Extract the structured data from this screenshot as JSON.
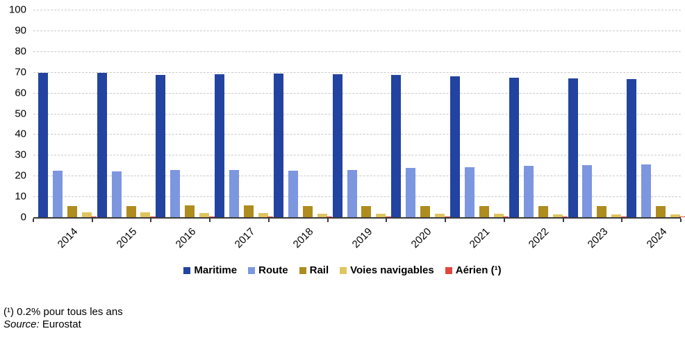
{
  "chart_data": {
    "type": "bar",
    "title": "",
    "categories": [
      "2014",
      "2015",
      "2016",
      "2017",
      "2018",
      "2019",
      "2020",
      "2021",
      "2022",
      "2023",
      "2024"
    ],
    "series": [
      {
        "name": "Maritime",
        "legend_label": "Maritime",
        "color": "#2343a0",
        "values": [
          69.5,
          69.5,
          68.4,
          68.8,
          69.2,
          69.0,
          68.6,
          67.8,
          67.3,
          67.0,
          66.6
        ]
      },
      {
        "name": "Route",
        "legend_label": "Route",
        "color": "#7d96e0",
        "values": [
          22.3,
          22.2,
          22.9,
          22.9,
          22.5,
          22.8,
          23.7,
          24.1,
          24.6,
          25.0,
          25.5
        ]
      },
      {
        "name": "Rail",
        "legend_label": "Rail",
        "color": "#ae8c1e",
        "values": [
          5.5,
          5.5,
          5.7,
          5.7,
          5.5,
          5.5,
          5.3,
          5.5,
          5.5,
          5.4,
          5.4
        ]
      },
      {
        "name": "Voies navigables",
        "legend_label": "Voies navigables",
        "color": "#e0c55f",
        "values": [
          2.2,
          2.2,
          2.1,
          1.9,
          1.6,
          1.7,
          1.7,
          1.7,
          1.4,
          1.4,
          1.4
        ]
      },
      {
        "name": "Aérien",
        "legend_label": "Aérien (¹)",
        "color": "#e0473c",
        "values": [
          0.2,
          0.2,
          0.2,
          0.2,
          0.2,
          0.2,
          0.2,
          0.2,
          0.2,
          0.2,
          0.2
        ]
      }
    ],
    "ylim": [
      0,
      100
    ],
    "ytick_step": 10,
    "grid": "horizontal-dashed",
    "legend_position": "bottom",
    "axis_color": "#3a3a3a",
    "gridline_color": "#c9c9c9"
  },
  "footnotes": {
    "note1": "(¹) 0.2% pour tous les ans",
    "source_label": "Source:",
    "source_value": "Eurostat"
  }
}
